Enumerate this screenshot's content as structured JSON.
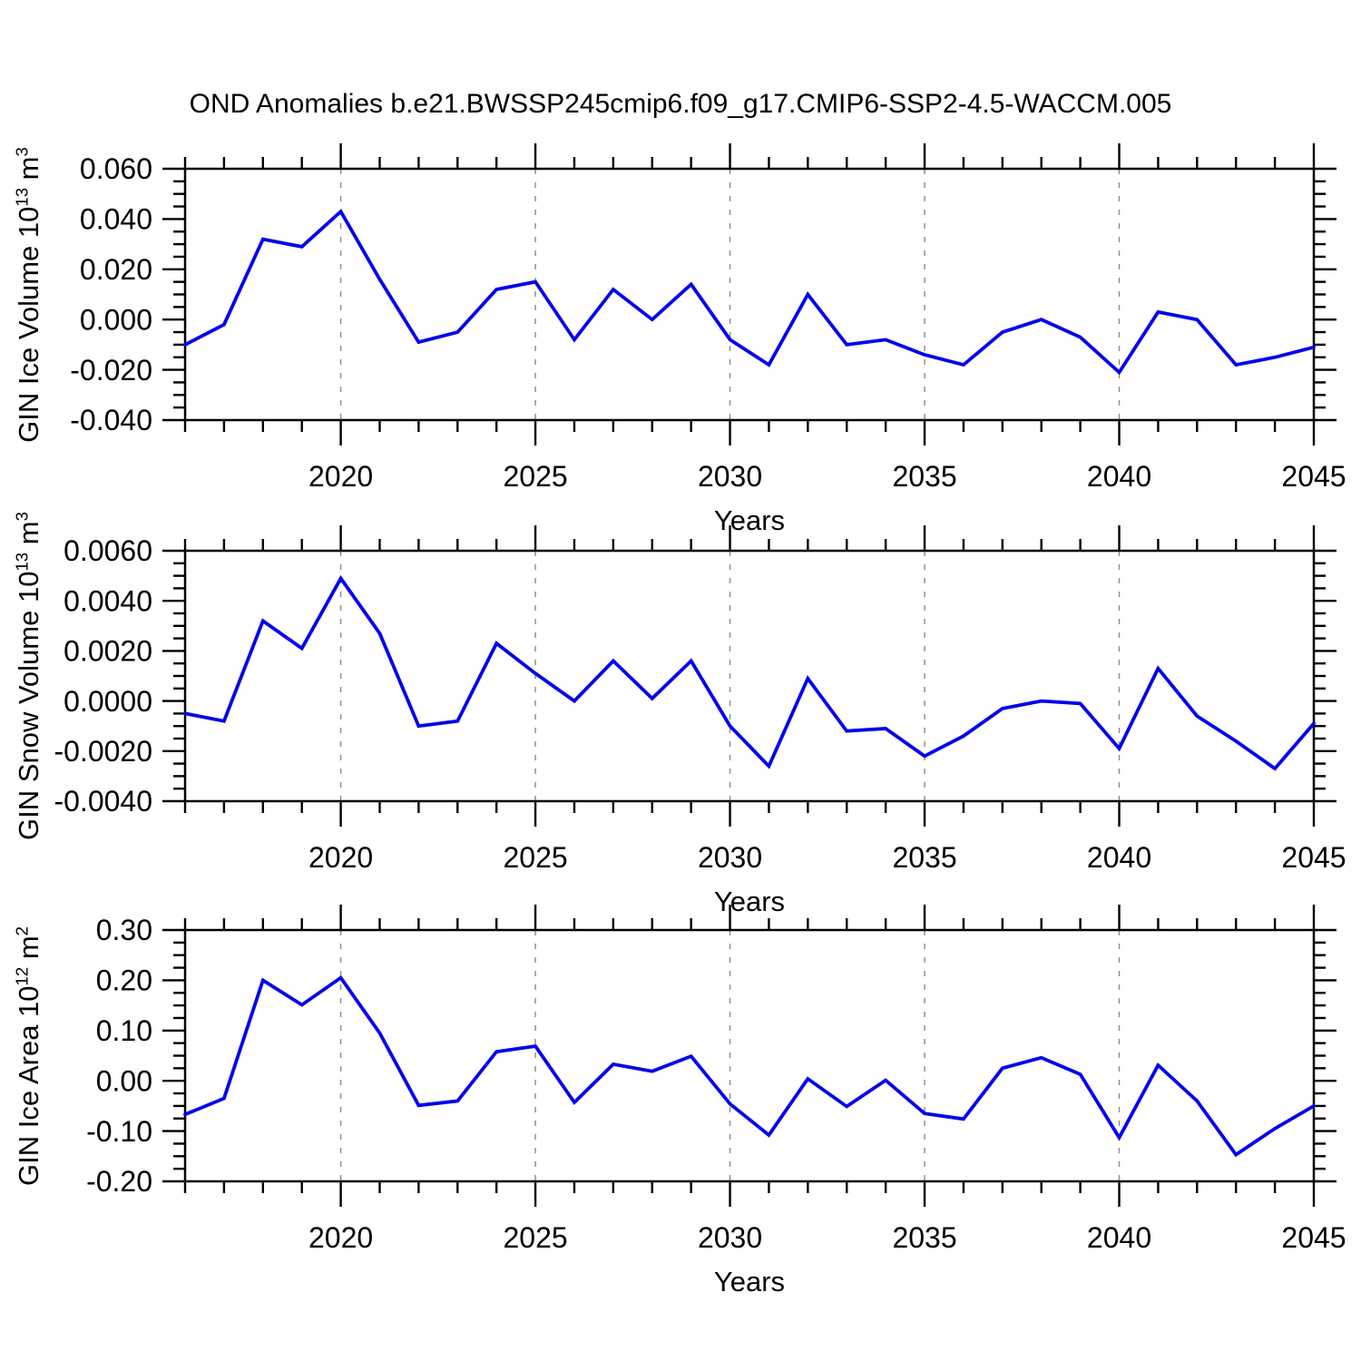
{
  "title": "OND Anomalies b.e21.BWSSP245cmip6.f09_g17.CMIP6-SSP2-4.5-WACCM.005",
  "colors": {
    "line": "#0000ee",
    "grid": "#909090",
    "frame": "#000000"
  },
  "x_axis": {
    "label": "Years",
    "major_tick_labels": [
      "2020",
      "2025",
      "2030",
      "2035",
      "2040",
      "2045"
    ],
    "major_tick_years": [
      2020,
      2025,
      2030,
      2035,
      2040,
      2045
    ],
    "gridline_years": [
      2020,
      2025,
      2030,
      2035,
      2040
    ],
    "range": [
      2016,
      2045
    ]
  },
  "chart_data": [
    {
      "type": "line",
      "ylabel": {
        "base": "GIN Ice Volume 10",
        "exp": "13",
        "unit": " m",
        "unit_exp": "3"
      },
      "xlabel": "Years",
      "ylim": [
        -0.04,
        0.06
      ],
      "ymajor_step": 0.02,
      "yminor_step": 0.005,
      "ytick_values": [
        0.06,
        0.04,
        0.02,
        0.0,
        -0.02,
        -0.04
      ],
      "ytick_labels": [
        "0.060",
        "0.040",
        "0.020",
        "0.000",
        "-0.020",
        "-0.040"
      ],
      "years": [
        2016,
        2017,
        2018,
        2019,
        2020,
        2021,
        2022,
        2023,
        2024,
        2025,
        2026,
        2027,
        2028,
        2029,
        2030,
        2031,
        2032,
        2033,
        2034,
        2035,
        2036,
        2037,
        2038,
        2039,
        2040,
        2041,
        2042,
        2043,
        2044,
        2045
      ],
      "values": [
        -0.01,
        -0.002,
        0.032,
        0.029,
        0.043,
        0.016,
        -0.009,
        -0.005,
        0.012,
        0.015,
        -0.008,
        0.012,
        0.0,
        0.014,
        -0.008,
        -0.018,
        0.01,
        -0.01,
        -0.008,
        -0.014,
        -0.018,
        -0.005,
        0.0,
        -0.007,
        -0.021,
        0.003,
        0.0,
        -0.018,
        -0.015,
        -0.011
      ]
    },
    {
      "type": "line",
      "ylabel": {
        "base": "GIN Snow Volume 10",
        "exp": "13",
        "unit": " m",
        "unit_exp": "3"
      },
      "xlabel": "Years",
      "ylim": [
        -0.004,
        0.006
      ],
      "ymajor_step": 0.002,
      "yminor_step": 0.0005,
      "ytick_values": [
        0.006,
        0.004,
        0.002,
        0.0,
        -0.002,
        -0.004
      ],
      "ytick_labels": [
        "0.0060",
        "0.0040",
        "0.0020",
        "0.0000",
        "-0.0020",
        "-0.0040"
      ],
      "years": [
        2016,
        2017,
        2018,
        2019,
        2020,
        2021,
        2022,
        2023,
        2024,
        2025,
        2026,
        2027,
        2028,
        2029,
        2030,
        2031,
        2032,
        2033,
        2034,
        2035,
        2036,
        2037,
        2038,
        2039,
        2040,
        2041,
        2042,
        2043,
        2044,
        2045
      ],
      "values": [
        -0.0005,
        -0.0008,
        0.0032,
        0.0021,
        0.0049,
        0.0027,
        -0.001,
        -0.0008,
        0.0023,
        0.0011,
        0.0,
        0.0016,
        0.0001,
        0.0016,
        -0.001,
        -0.0026,
        0.0009,
        -0.0012,
        -0.0011,
        -0.0022,
        -0.0014,
        -0.0003,
        0.0,
        -0.0001,
        -0.0019,
        0.0013,
        -0.0006,
        -0.0016,
        -0.0027,
        -0.0009
      ]
    },
    {
      "type": "line",
      "ylabel": {
        "base": "GIN Ice Area 10",
        "exp": "12",
        "unit": " m",
        "unit_exp": "2"
      },
      "xlabel": "Years",
      "ylim": [
        -0.2,
        0.3
      ],
      "ymajor_step": 0.1,
      "yminor_step": 0.025,
      "ytick_values": [
        0.3,
        0.2,
        0.1,
        0.0,
        -0.1,
        -0.2
      ],
      "ytick_labels": [
        "0.30",
        "0.20",
        "0.10",
        "0.00",
        "-0.10",
        "-0.20"
      ],
      "years": [
        2016,
        2017,
        2018,
        2019,
        2020,
        2021,
        2022,
        2023,
        2024,
        2025,
        2026,
        2027,
        2028,
        2029,
        2030,
        2031,
        2032,
        2033,
        2034,
        2035,
        2036,
        2037,
        2038,
        2039,
        2040,
        2041,
        2042,
        2043,
        2044,
        2045
      ],
      "values": [
        -0.067,
        -0.035,
        0.2,
        0.151,
        0.205,
        0.095,
        -0.049,
        -0.04,
        0.058,
        0.069,
        -0.043,
        0.033,
        0.019,
        0.049,
        -0.046,
        -0.108,
        0.004,
        -0.051,
        0.001,
        -0.065,
        -0.076,
        0.025,
        0.046,
        0.013,
        -0.113,
        0.031,
        -0.04,
        -0.147,
        -0.095,
        -0.05
      ]
    }
  ]
}
